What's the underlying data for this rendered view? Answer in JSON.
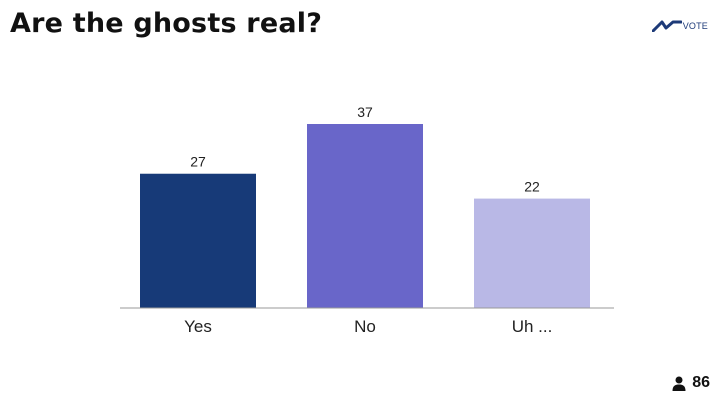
{
  "title": "Are the ghosts real?",
  "brand": {
    "text": "VOTE",
    "icon": "vote-logo-icon",
    "color": "#1d3a78"
  },
  "participants": {
    "icon": "person-icon",
    "count": "86"
  },
  "chart_data": {
    "type": "bar",
    "title": "Are the ghosts real?",
    "categories": [
      "Yes",
      "No",
      "Uh ..."
    ],
    "values": [
      27,
      37,
      22
    ],
    "colors": [
      "#173a78",
      "#6966c9",
      "#b9b8e6"
    ],
    "ylim": [
      0,
      40
    ],
    "grid": false,
    "legend": "none",
    "data_labels": true
  }
}
